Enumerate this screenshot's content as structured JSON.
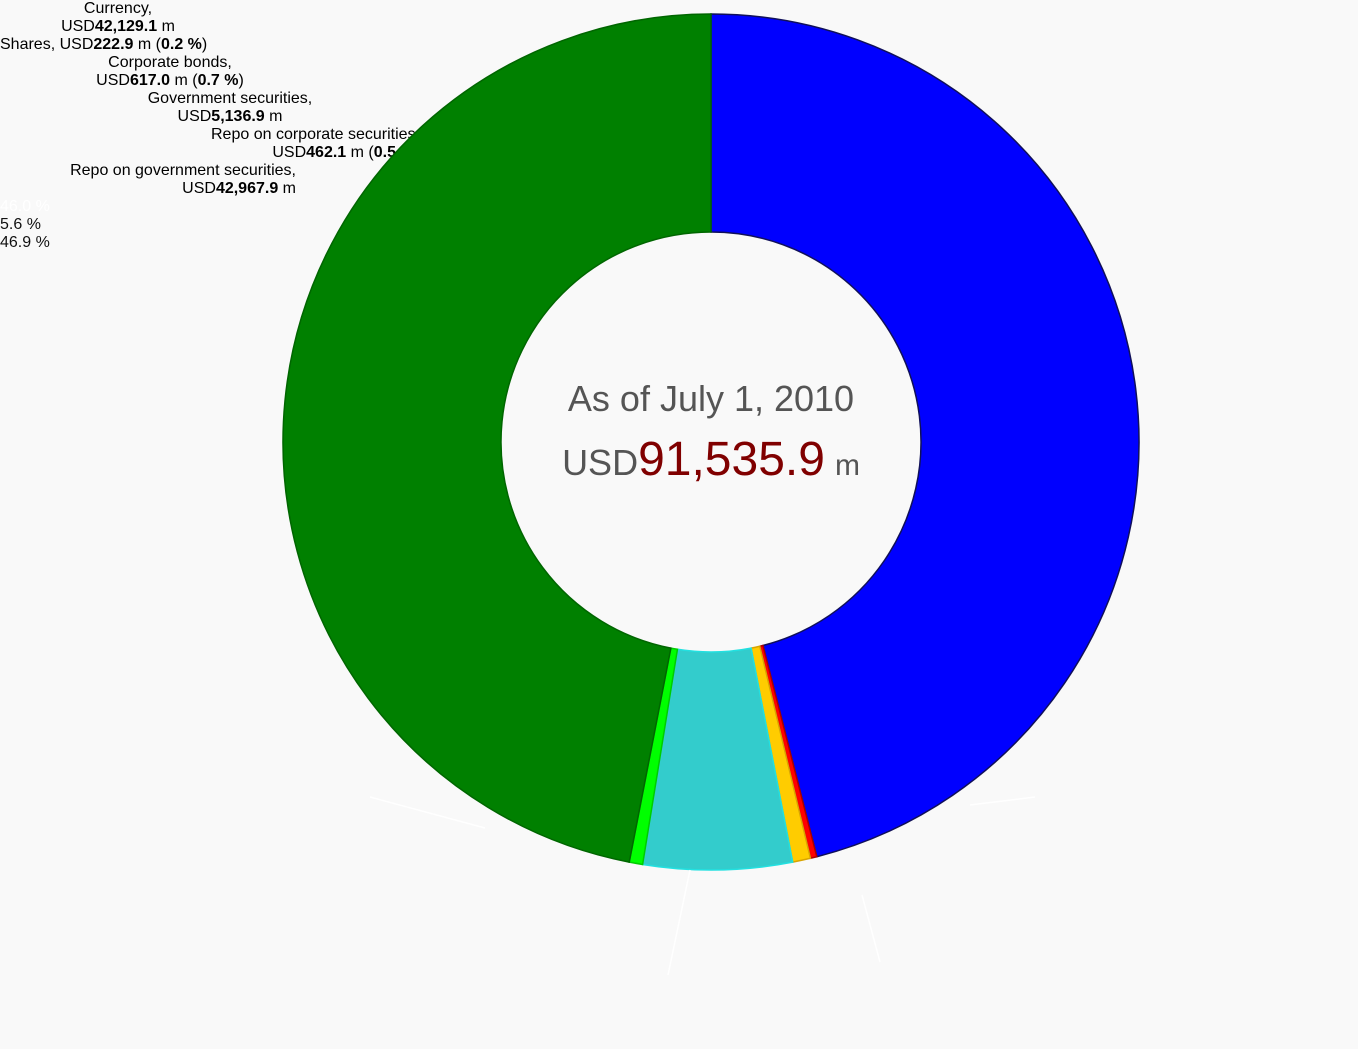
{
  "chart_data": {
    "type": "pie",
    "donut": true,
    "categories": [
      "Currency,",
      "Shares,",
      "Corporate bonds,",
      "Government securities,",
      "Repo on corporate securities,",
      "Repo on government securities,"
    ],
    "values": [
      42129.1,
      222.9,
      617.0,
      5136.9,
      462.1,
      42967.9
    ],
    "value_labels": [
      "42,129.1",
      "222.9",
      "617.0",
      "5,136.9",
      "462.1",
      "42,967.9"
    ],
    "colors": [
      "#0000ff",
      "#ff0000",
      "#ffcc00",
      "#33cccc",
      "#00ff00",
      "#008000"
    ],
    "percentages": [
      46.0,
      0.2,
      0.7,
      5.6,
      0.5,
      46.9
    ],
    "percentage_labels": [
      "46.0 %",
      "0.2 %",
      "0.7 %",
      "5.6 %",
      "0.5 %",
      "46.9 %"
    ],
    "currency": "USD",
    "unit": "m",
    "paren_open": "(",
    "paren_close": ")",
    "center_title": "As of July 1, 2010",
    "total": {
      "value": 91535.9,
      "label": "91,535.9"
    }
  }
}
